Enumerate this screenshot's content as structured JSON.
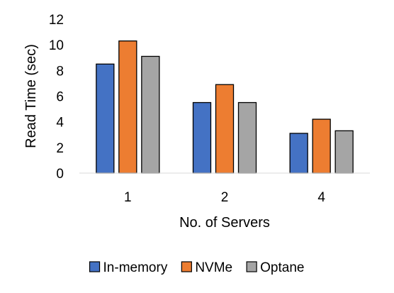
{
  "chart_data": {
    "type": "bar",
    "categories": [
      "1",
      "2",
      "4"
    ],
    "xlabel": "No. of Servers",
    "ylabel": "Read Time (sec)",
    "ylim": [
      0,
      12
    ],
    "yticks": [
      0,
      2,
      4,
      6,
      8,
      10,
      12
    ],
    "grid": false,
    "legend_position": "bottom",
    "series": [
      {
        "name": "In-memory",
        "color": "#4472C4",
        "values": [
          8.5,
          5.5,
          3.1
        ]
      },
      {
        "name": "NVMe",
        "color": "#ED7D31",
        "values": [
          10.3,
          6.9,
          4.2
        ]
      },
      {
        "name": "Optane",
        "color": "#A5A5A5",
        "values": [
          9.1,
          5.5,
          3.3
        ]
      }
    ]
  }
}
